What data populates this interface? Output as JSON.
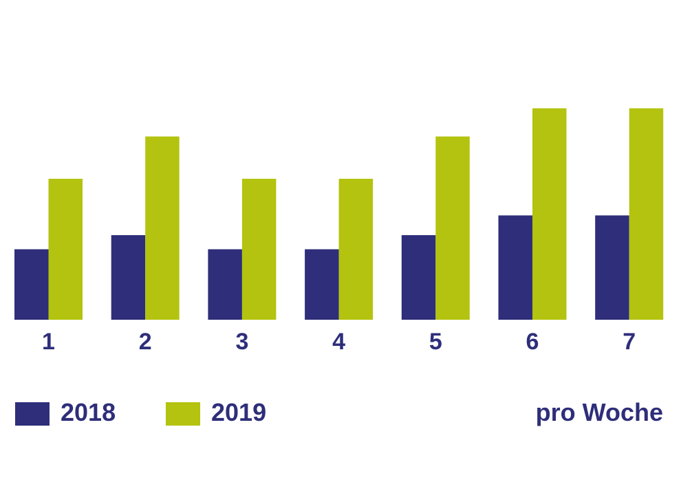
{
  "chart_data": {
    "type": "bar",
    "categories": [
      "1",
      "2",
      "3",
      "4",
      "5",
      "6",
      "7"
    ],
    "series": [
      {
        "name": "2018",
        "color": "#2e2e7a",
        "values": [
          5,
          6,
          5,
          5,
          6,
          7.4,
          7.4
        ]
      },
      {
        "name": "2019",
        "color": "#b3c30f",
        "values": [
          10,
          13,
          10,
          10,
          13,
          15,
          15
        ]
      }
    ],
    "title": "",
    "xlabel": "",
    "ylabel": "",
    "ylim": [
      0,
      20
    ],
    "grid": false,
    "legend_placement": "bottom-left",
    "unit_label": "pro Woche"
  },
  "colors": {
    "text": "#2e2e7a"
  }
}
